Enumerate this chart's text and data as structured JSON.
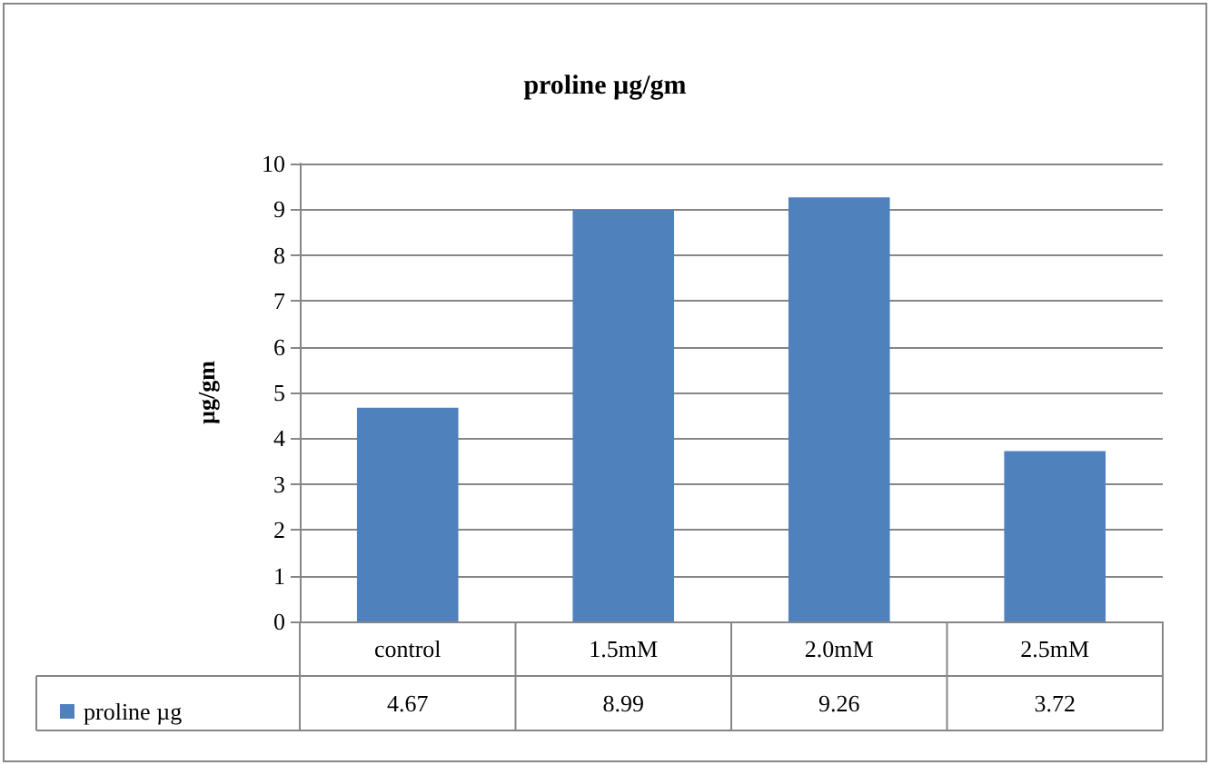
{
  "chart_data": {
    "type": "bar",
    "title": "proline µg/gm",
    "ylabel": "µg/gm",
    "categories": [
      "control",
      "1.5mM",
      "2.0mM",
      "2.5mM"
    ],
    "series": [
      {
        "name": "proline µg",
        "color": "#4f81bd",
        "values": [
          4.67,
          8.99,
          9.26,
          3.72
        ]
      }
    ],
    "ylim": [
      0,
      10
    ],
    "yticks": [
      0,
      1,
      2,
      3,
      4,
      5,
      6,
      7,
      8,
      9,
      10
    ],
    "grid": "y",
    "legend": "bottom",
    "data_labels": true
  }
}
